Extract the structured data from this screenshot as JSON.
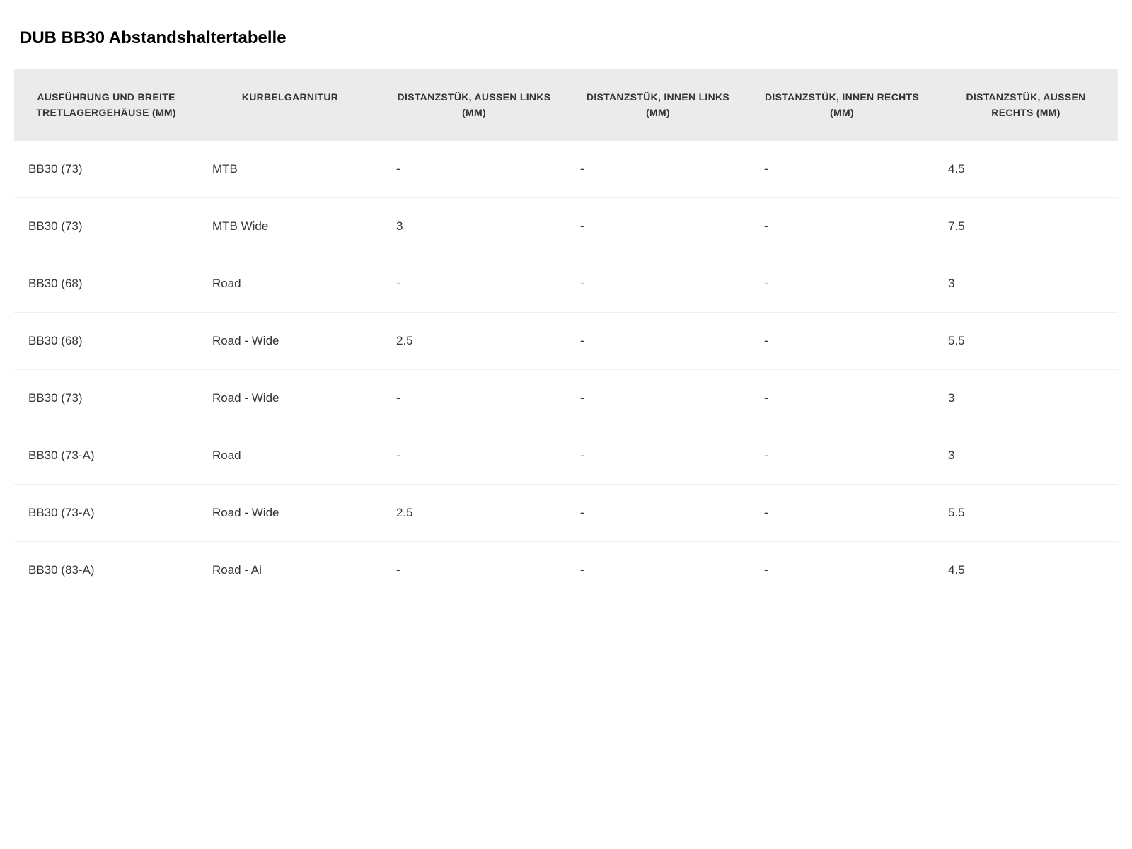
{
  "title": "DUB BB30 Abstandshaltertabelle",
  "table": {
    "type": "table",
    "background_color": "#ffffff",
    "header_bg_color": "#ebebeb",
    "header_text_color": "#333333",
    "cell_text_color": "#333333",
    "row_border_color": "#f0f0f0",
    "title_fontsize": 24,
    "header_fontsize": 14,
    "cell_fontsize": 17,
    "columns": [
      "AUSFÜHRUNG UND BREITE TRETLAGERGEHÄUSE (MM)",
      "KURBELGARNITUR",
      "DISTANZSTÜK, AUSSEN LINKS (MM)",
      "DISTANZSTÜK, INNEN LINKS (MM)",
      "DISTANZSTÜK, INNEN RECHTS (MM)",
      "DISTANZSTÜK, AUSSEN RECHTS (MM)"
    ],
    "rows": [
      [
        "BB30 (73)",
        "MTB",
        "-",
        "-",
        "-",
        "4.5"
      ],
      [
        "BB30 (73)",
        "MTB Wide",
        "3",
        "-",
        "-",
        "7.5"
      ],
      [
        "BB30 (68)",
        "Road",
        "-",
        "-",
        "-",
        "3"
      ],
      [
        "BB30 (68)",
        "Road - Wide",
        "2.5",
        "-",
        "-",
        "5.5"
      ],
      [
        "BB30 (73)",
        "Road - Wide",
        "-",
        "-",
        "-",
        "3"
      ],
      [
        "BB30 (73-A)",
        "Road",
        "-",
        "-",
        "-",
        "3"
      ],
      [
        "BB30 (73-A)",
        "Road - Wide",
        "2.5",
        "-",
        "-",
        "5.5"
      ],
      [
        "BB30 (83-A)",
        "Road - Ai",
        "-",
        "-",
        "-",
        "4.5"
      ]
    ]
  }
}
